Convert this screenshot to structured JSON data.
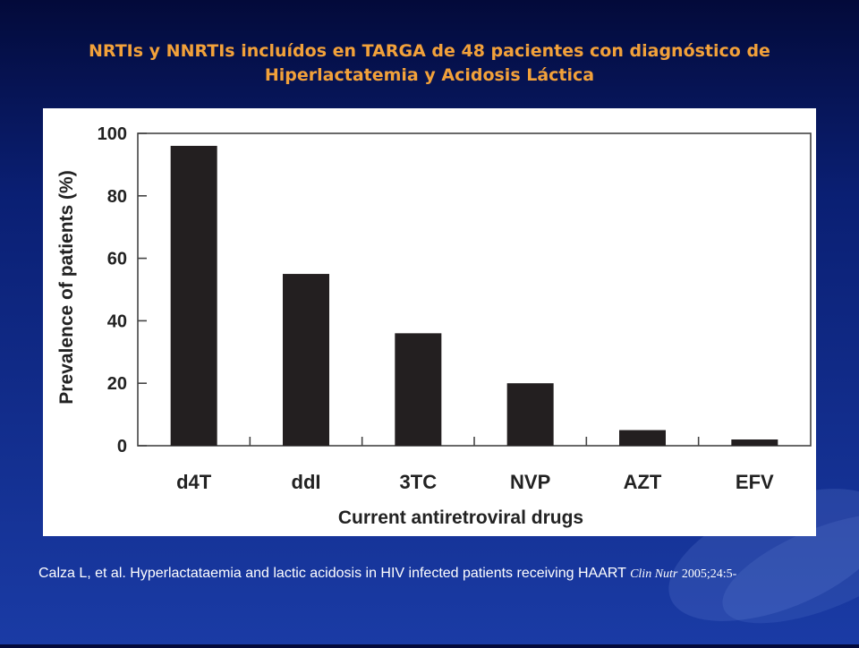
{
  "slide": {
    "title_line1": "NRTIs y NNRTIs incluídos en TARGA de 48 pacientes con diagnóstico de",
    "title_line2": "Hiperlactatemia y Acidosis Láctica",
    "citation_text": "Calza L, et al. Hyperlactataemia and lactic acidosis in HIV infected patients receiving HAART",
    "citation_journal": "Clin Nutr",
    "citation_ref": "2005;24:5-"
  },
  "colors": {
    "background_top": "#030a3a",
    "background_bottom": "#1a3ba5",
    "title": "#f2a13a",
    "bar": "#231f20",
    "panel": "#ffffff"
  },
  "chart_data": {
    "type": "bar",
    "categories": [
      "d4T",
      "ddI",
      "3TC",
      "NVP",
      "AZT",
      "EFV"
    ],
    "values": [
      96,
      55,
      36,
      20,
      5,
      2
    ],
    "title": "",
    "xlabel": "Current antiretroviral drugs",
    "ylabel": "Prevalence of patients (%)",
    "ylim": [
      0,
      100
    ],
    "yticks": [
      "0",
      "20",
      "40",
      "60",
      "80",
      "100"
    ],
    "grid": false,
    "legend": "none"
  }
}
